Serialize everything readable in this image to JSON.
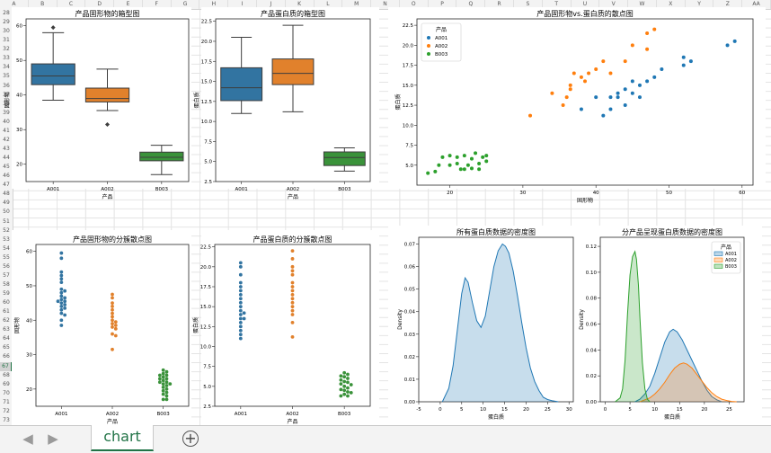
{
  "spreadsheet": {
    "columns": [
      "A",
      "B",
      "C",
      "D",
      "E",
      "F",
      "G",
      "H",
      "I",
      "J",
      "K",
      "L",
      "M",
      "N",
      "O",
      "P",
      "Q",
      "R",
      "S",
      "T",
      "U",
      "V",
      "W",
      "X",
      "Y",
      "Z",
      "AA"
    ],
    "first_row": 28,
    "last_row": 73,
    "active_row": 67,
    "sheet_tab": "chart",
    "add_sheet_symbol": "+",
    "prev_symbol": "◀",
    "next_symbol": "▶"
  },
  "chart_data": [
    {
      "id": "box_solid",
      "type": "box",
      "title": "产品固形物的箱型图",
      "xlabel": "产品",
      "ylabel": "固形物",
      "categories": [
        "A001",
        "A002",
        "B003"
      ],
      "colors": [
        "#3274a1",
        "#e1812c",
        "#3a923a"
      ],
      "ylim": [
        15,
        62
      ],
      "yticks": [
        20,
        30,
        40,
        50,
        60
      ],
      "boxes": [
        {
          "whislo": 38.5,
          "q1": 43,
          "med": 45.5,
          "q3": 49,
          "whishi": 58,
          "fliers": [
            59.5
          ]
        },
        {
          "whislo": 35.5,
          "q1": 38,
          "med": 39,
          "q3": 42,
          "whishi": 47.5,
          "fliers": [
            31.5
          ]
        },
        {
          "whislo": 17,
          "q1": 21,
          "med": 22,
          "q3": 23.5,
          "whishi": 25.5,
          "fliers": []
        }
      ]
    },
    {
      "id": "box_protein",
      "type": "box",
      "title": "产品蛋白质的箱型图",
      "xlabel": "产品",
      "ylabel": "蛋白质",
      "categories": [
        "A001",
        "A002",
        "B003"
      ],
      "colors": [
        "#3274a1",
        "#e1812c",
        "#3a923a"
      ],
      "ylim": [
        2.5,
        22.8
      ],
      "yticks": [
        2.5,
        5.0,
        7.5,
        10.0,
        12.5,
        15.0,
        17.5,
        20.0,
        22.5
      ],
      "tick_labels": [
        "2.5",
        "5.0",
        "7.5",
        "10.0",
        "12.5",
        "15.0",
        "17.5",
        "20.0",
        "22.5"
      ],
      "boxes": [
        {
          "whislo": 11,
          "q1": 12.6,
          "med": 14.2,
          "q3": 16.7,
          "whishi": 20.5,
          "fliers": []
        },
        {
          "whislo": 11.2,
          "q1": 14.6,
          "med": 16.0,
          "q3": 17.8,
          "whishi": 22.0,
          "fliers": []
        },
        {
          "whislo": 3.8,
          "q1": 4.5,
          "med": 5.5,
          "q3": 6.2,
          "whishi": 6.7,
          "fliers": []
        }
      ]
    },
    {
      "id": "scatter_main",
      "type": "scatter",
      "title": "产品固形物vs.蛋白质的散点图",
      "xlabel": "固形物",
      "ylabel": "蛋白质",
      "xlim": [
        15.5,
        61.5
      ],
      "ylim": [
        2.5,
        23.3
      ],
      "xticks": [
        20,
        30,
        40,
        50,
        60
      ],
      "yticks": [
        5.0,
        7.5,
        10.0,
        12.5,
        15.0,
        17.5,
        20.0,
        22.5
      ],
      "tick_labels_y": [
        "5.0",
        "7.5",
        "10.0",
        "12.5",
        "15.0",
        "17.5",
        "20.0",
        "22.5"
      ],
      "legend_title": "产品",
      "legend_position": "top-left",
      "series": [
        {
          "name": "A001",
          "color": "#1f77b4",
          "points": [
            [
              38,
              12
            ],
            [
              41,
              11.2
            ],
            [
              40,
              13.5
            ],
            [
              42,
              13.5
            ],
            [
              42,
              12
            ],
            [
              43,
              14
            ],
            [
              43,
              13.5
            ],
            [
              44,
              12.5
            ],
            [
              44,
              14.5
            ],
            [
              45,
              14
            ],
            [
              45,
              15.5
            ],
            [
              46,
              13.5
            ],
            [
              46,
              15
            ],
            [
              47,
              15.5
            ],
            [
              48,
              16
            ],
            [
              49,
              17
            ],
            [
              52,
              17.5
            ],
            [
              52,
              18.5
            ],
            [
              53,
              18
            ],
            [
              58,
              20
            ],
            [
              59,
              20.5
            ]
          ]
        },
        {
          "name": "A002",
          "color": "#ff7f0e",
          "points": [
            [
              31,
              11.2
            ],
            [
              34,
              14
            ],
            [
              35.5,
              12.5
            ],
            [
              36,
              13.5
            ],
            [
              36.5,
              15
            ],
            [
              37,
              16.5
            ],
            [
              38,
              16
            ],
            [
              39,
              16.5
            ],
            [
              40,
              17
            ],
            [
              41,
              18
            ],
            [
              42,
              16.5
            ],
            [
              44,
              18
            ],
            [
              45,
              20
            ],
            [
              47,
              21.5
            ],
            [
              48,
              22
            ],
            [
              47,
              19.5
            ],
            [
              36.5,
              14.5
            ],
            [
              38.5,
              15.5
            ]
          ]
        },
        {
          "name": "B003",
          "color": "#2ca02c",
          "points": [
            [
              17,
              4
            ],
            [
              18,
              4.2
            ],
            [
              18.5,
              5
            ],
            [
              19,
              6
            ],
            [
              20,
              6.2
            ],
            [
              20,
              5
            ],
            [
              21,
              5.2
            ],
            [
              21,
              6
            ],
            [
              21.5,
              4.5
            ],
            [
              22,
              4.5
            ],
            [
              22,
              6.2
            ],
            [
              22.5,
              5
            ],
            [
              23,
              4.6
            ],
            [
              23,
              5.8
            ],
            [
              23.5,
              6.5
            ],
            [
              24,
              4.5
            ],
            [
              24,
              5.2
            ],
            [
              24.5,
              6
            ],
            [
              25,
              6.2
            ],
            [
              25,
              5.5
            ]
          ]
        }
      ]
    },
    {
      "id": "swarm_solid",
      "type": "swarm",
      "title": "产品固形物的分簇散点图",
      "xlabel": "产品",
      "ylabel": "固形物",
      "categories": [
        "A001",
        "A002",
        "B003"
      ],
      "colors": [
        "#3274a1",
        "#e1812c",
        "#3a923a"
      ],
      "ylim": [
        15,
        62
      ],
      "yticks": [
        20,
        30,
        40,
        50,
        60
      ],
      "values": [
        [
          59.5,
          58,
          54,
          53,
          52,
          51,
          49,
          48.5,
          48,
          47,
          46.5,
          46,
          45.5,
          45.5,
          45,
          44.5,
          44,
          43.5,
          43,
          42,
          41.5,
          40,
          38.5
        ],
        [
          47.5,
          46.5,
          45,
          44,
          43,
          42,
          41,
          40,
          39.5,
          39,
          38.5,
          38,
          37.5,
          36,
          35.5,
          31.5
        ],
        [
          25.5,
          25,
          24.5,
          24,
          24,
          23.5,
          23,
          23,
          22.5,
          22,
          22,
          21.5,
          21.5,
          21,
          20.5,
          20,
          19.5,
          19,
          18.5,
          18,
          17,
          17
        ]
      ]
    },
    {
      "id": "swarm_protein",
      "type": "swarm",
      "title": "产品蛋白质的分簇散点图",
      "xlabel": "产品",
      "ylabel": "蛋白质",
      "categories": [
        "A001",
        "A002",
        "B003"
      ],
      "colors": [
        "#3274a1",
        "#e1812c",
        "#3a923a"
      ],
      "ylim": [
        2.5,
        22.8
      ],
      "yticks": [
        2.5,
        5.0,
        7.5,
        10.0,
        12.5,
        15.0,
        17.5,
        20.0,
        22.5
      ],
      "tick_labels": [
        "2.5",
        "5.0",
        "7.5",
        "10.0",
        "12.5",
        "15.0",
        "17.5",
        "20.0",
        "22.5"
      ],
      "values": [
        [
          20.5,
          20,
          19,
          18,
          17.5,
          17,
          16.5,
          16,
          15.5,
          15,
          14.5,
          14.2,
          14,
          13.5,
          13.5,
          13,
          12.5,
          12,
          11.5,
          11
        ],
        [
          22,
          21,
          20,
          19.5,
          19,
          18,
          17.5,
          17,
          16.5,
          16,
          15.5,
          15,
          14.5,
          14,
          13,
          11.2
        ],
        [
          6.7,
          6.5,
          6.3,
          6.2,
          6,
          5.8,
          5.6,
          5.5,
          5.3,
          5.2,
          5,
          4.8,
          4.6,
          4.5,
          4.3,
          4.2,
          4,
          3.8,
          3.8
        ]
      ]
    },
    {
      "id": "kde_all",
      "type": "area",
      "title": "所有蛋白质数据的密度图",
      "xlabel": "蛋白质",
      "ylabel": "Density",
      "xlim": [
        -5,
        31
      ],
      "ylim": [
        0,
        0.073
      ],
      "xticks": [
        -5,
        0,
        5,
        10,
        15,
        20,
        25,
        30
      ],
      "yticks": [
        0,
        0.01,
        0.02,
        0.03,
        0.04,
        0.05,
        0.06,
        0.07
      ],
      "tick_labels_y": [
        "0.00",
        "0.01",
        "0.02",
        "0.03",
        "0.04",
        "0.05",
        "0.06",
        "0.07"
      ],
      "color": "#1f77b4",
      "x": [
        0.5,
        2,
        3,
        4,
        5,
        5.8,
        6.5,
        7.5,
        8.5,
        9.5,
        10.5,
        11.5,
        12.5,
        13.5,
        14.5,
        15.2,
        16,
        17,
        18,
        19,
        20,
        21,
        22,
        23,
        24,
        25,
        26,
        27.5
      ],
      "y": [
        0,
        0.006,
        0.016,
        0.032,
        0.048,
        0.055,
        0.053,
        0.044,
        0.036,
        0.033,
        0.038,
        0.049,
        0.06,
        0.067,
        0.07,
        0.069,
        0.066,
        0.058,
        0.047,
        0.035,
        0.024,
        0.015,
        0.009,
        0.005,
        0.002,
        0.001,
        0.0005,
        0
      ]
    },
    {
      "id": "kde_by_product",
      "type": "area",
      "title": "分产品呈现蛋白质数据的密度图",
      "xlabel": "蛋白质",
      "ylabel": "Density",
      "xlim": [
        -1,
        28
      ],
      "ylim": [
        0,
        0.127
      ],
      "xticks": [
        0,
        5,
        10,
        15,
        20,
        25
      ],
      "yticks": [
        0,
        0.02,
        0.04,
        0.06,
        0.08,
        0.1,
        0.12
      ],
      "tick_labels_y": [
        "0.00",
        "0.02",
        "0.04",
        "0.06",
        "0.08",
        "0.10",
        "0.12"
      ],
      "legend_title": "产品",
      "legend_position": "top-right",
      "series": [
        {
          "name": "A001",
          "color": "#1f77b4",
          "x": [
            6,
            7,
            8,
            9,
            10,
            11,
            12,
            13,
            13.7,
            14.5,
            15.5,
            16.5,
            17.5,
            18.5,
            19.5,
            20.5,
            21.5,
            22.5,
            23.5
          ],
          "y": [
            0,
            0.002,
            0.006,
            0.012,
            0.022,
            0.034,
            0.046,
            0.054,
            0.056,
            0.054,
            0.048,
            0.04,
            0.032,
            0.024,
            0.016,
            0.009,
            0.004,
            0.0015,
            0
          ]
        },
        {
          "name": "A002",
          "color": "#ff7f0e",
          "x": [
            7,
            8,
            9,
            10,
            11,
            12,
            13,
            14,
            15,
            15.8,
            16.5,
            17.5,
            18.5,
            19.5,
            20.5,
            21.5,
            22.5,
            23.5,
            24.5,
            25.5,
            26.5
          ],
          "y": [
            0,
            0.0015,
            0.003,
            0.006,
            0.01,
            0.015,
            0.021,
            0.026,
            0.029,
            0.03,
            0.029,
            0.026,
            0.021,
            0.016,
            0.011,
            0.007,
            0.004,
            0.002,
            0.001,
            0.0003,
            0
          ]
        },
        {
          "name": "B003",
          "color": "#2ca02c",
          "x": [
            2,
            3,
            3.5,
            4,
            4.5,
            5,
            5.5,
            6,
            6.3,
            6.7,
            7,
            7.5,
            8,
            8.5,
            9
          ],
          "y": [
            0,
            0.003,
            0.01,
            0.032,
            0.068,
            0.098,
            0.112,
            0.116,
            0.11,
            0.09,
            0.065,
            0.03,
            0.01,
            0.002,
            0
          ]
        }
      ]
    }
  ]
}
